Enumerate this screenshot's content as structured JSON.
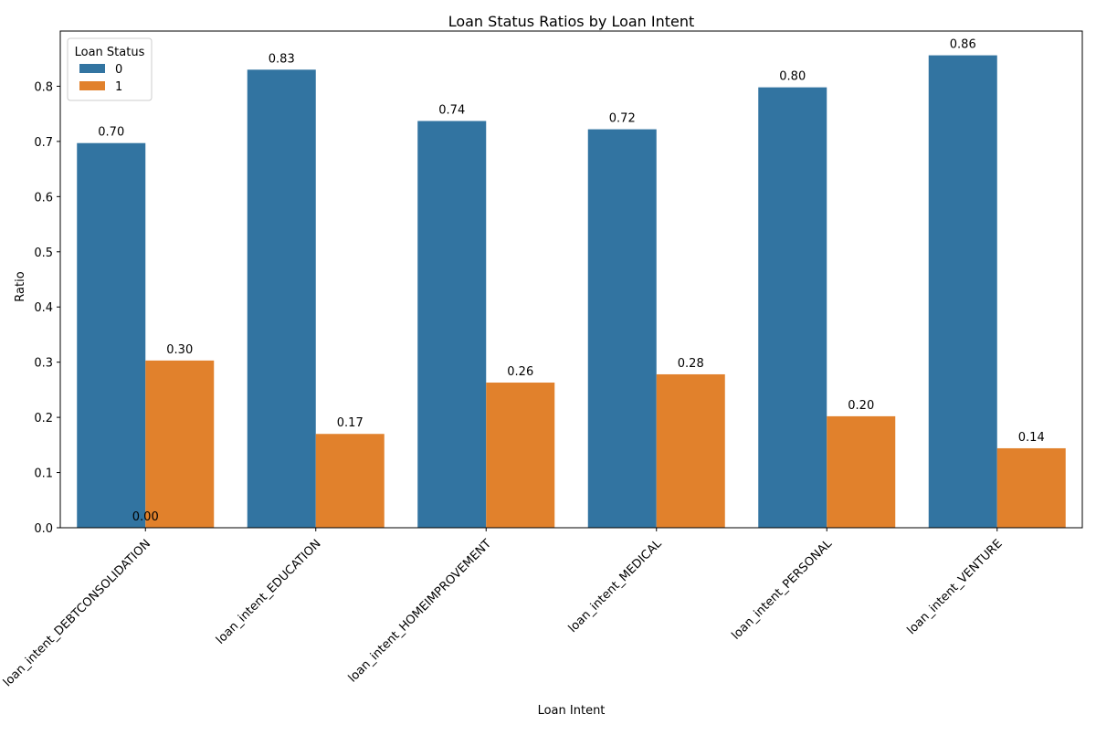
{
  "chart_data": {
    "type": "bar",
    "title": "Loan Status Ratios by Loan Intent",
    "xlabel": "Loan Intent",
    "ylabel": "Ratio",
    "ylim": [
      0,
      0.9
    ],
    "yticks": [
      "0.0",
      "0.1",
      "0.2",
      "0.3",
      "0.4",
      "0.5",
      "0.6",
      "0.7",
      "0.8"
    ],
    "grid": false,
    "legend": {
      "title": "Loan Status",
      "position": "top-left"
    },
    "categories": [
      "loan_intent_DEBTCONSOLIDATION",
      "loan_intent_EDUCATION",
      "loan_intent_HOMEIMPROVEMENT",
      "loan_intent_MEDICAL",
      "loan_intent_PERSONAL",
      "loan_intent_VENTURE"
    ],
    "series": [
      {
        "name": "0",
        "color": "#3274a1",
        "values": [
          0.697,
          0.83,
          0.737,
          0.722,
          0.798,
          0.856
        ],
        "labels": [
          "0.70",
          "0.83",
          "0.74",
          "0.72",
          "0.80",
          "0.86"
        ]
      },
      {
        "name": "1",
        "color": "#e1812c",
        "values": [
          0.303,
          0.17,
          0.263,
          0.278,
          0.202,
          0.144
        ],
        "labels": [
          "0.30",
          "0.17",
          "0.26",
          "0.28",
          "0.20",
          "0.14"
        ]
      }
    ],
    "annotations": [
      {
        "text": "0.00",
        "category": "loan_intent_DEBTCONSOLIDATION",
        "value": 0.0
      }
    ]
  }
}
